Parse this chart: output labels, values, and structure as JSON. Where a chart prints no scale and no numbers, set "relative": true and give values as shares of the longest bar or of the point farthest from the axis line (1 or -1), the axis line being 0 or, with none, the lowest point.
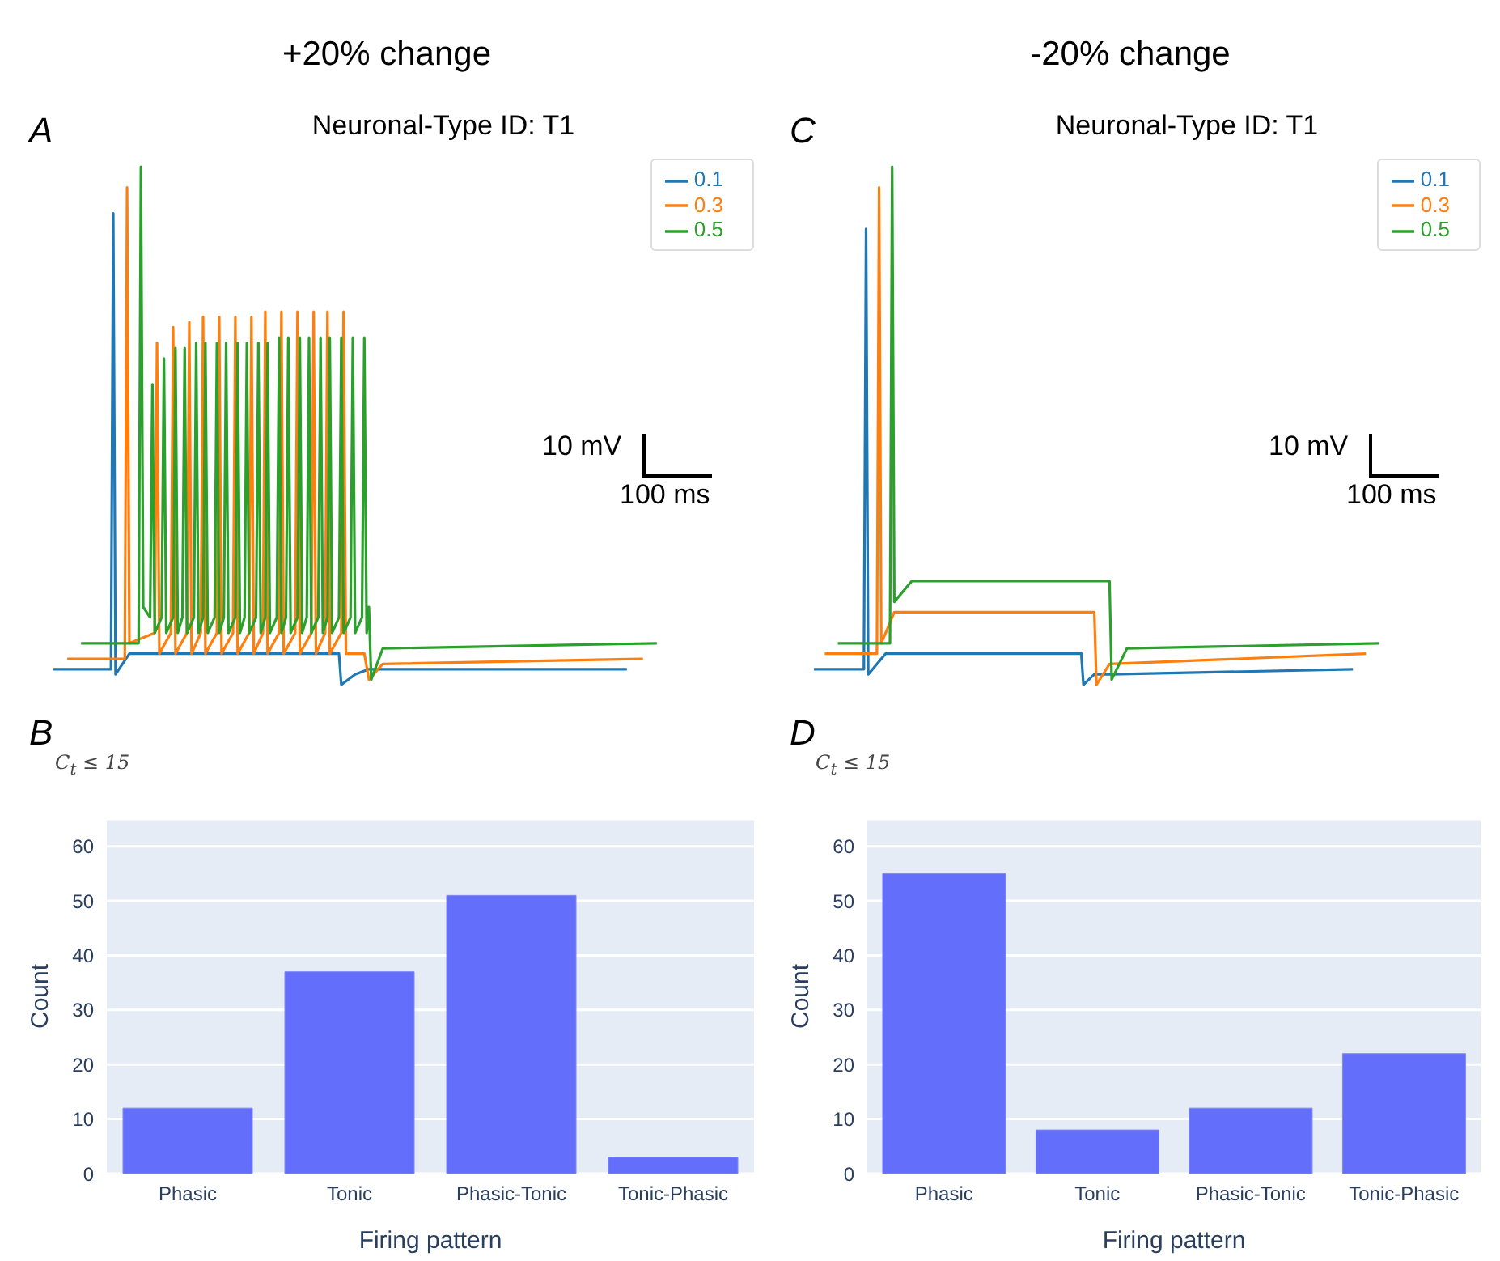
{
  "chart_data": [
    {
      "type": "line",
      "relative": true,
      "title": "+20% change",
      "subtitle": "Neuronal-Type ID: T1",
      "annotations": [
        "A",
        "10 mV",
        "100 ms"
      ],
      "tick_labels": false,
      "legend": "top right",
      "line_style": "solid",
      "categories": [
        null,
        null,
        null,
        null,
        null,
        null,
        null,
        null,
        null,
        null,
        null,
        null,
        null,
        null,
        null,
        null,
        null,
        null,
        null,
        null,
        null,
        null,
        null,
        null,
        null,
        null,
        null,
        null,
        null,
        null,
        null,
        null,
        null,
        null,
        null,
        null,
        null,
        null,
        null,
        null,
        null,
        null,
        null,
        null,
        null,
        null,
        null,
        null,
        null,
        null,
        null,
        null,
        null,
        null,
        null,
        null,
        null,
        null,
        null,
        null,
        null,
        null,
        null,
        null,
        null,
        null,
        null,
        null,
        null,
        null,
        null,
        null,
        null,
        null,
        null,
        null,
        null,
        null,
        null,
        null,
        null,
        null,
        null,
        null,
        null,
        null,
        null,
        null,
        null,
        null,
        null,
        null,
        null,
        null,
        null,
        null,
        null,
        null,
        null,
        null,
        null,
        null,
        null,
        null,
        null,
        null,
        null,
        null,
        null,
        null,
        null,
        null,
        null,
        null,
        null,
        null,
        null,
        null,
        null,
        null,
        null,
        null,
        null,
        null,
        null,
        null,
        null,
        null,
        null,
        null,
        null,
        null,
        null,
        null,
        null,
        null,
        null,
        null,
        null,
        null,
        null,
        null,
        null,
        null,
        null,
        null,
        null,
        null,
        null,
        null,
        null,
        null,
        null,
        null,
        null,
        null,
        null,
        null,
        null,
        null,
        null,
        null,
        null,
        null,
        null,
        null,
        null,
        null,
        null,
        null,
        null,
        null,
        null,
        null,
        null,
        null,
        null,
        null,
        null,
        null,
        null,
        null,
        null,
        null,
        null,
        null,
        null,
        null,
        null,
        null,
        null,
        null,
        null,
        null,
        null,
        null,
        null,
        null,
        null,
        null,
        null,
        null,
        null,
        null,
        null,
        null,
        null,
        null,
        null,
        null,
        null,
        null,
        null,
        null,
        null,
        null,
        null,
        null,
        null,
        null,
        null,
        null,
        null,
        null,
        null,
        null,
        null,
        null,
        null,
        null,
        null,
        null,
        null,
        null,
        null,
        null,
        null,
        null,
        null,
        null,
        null,
        null,
        null,
        null,
        null,
        null,
        null,
        null,
        null,
        null,
        null,
        null,
        null,
        null,
        null,
        null,
        null,
        null,
        null,
        null,
        null,
        null,
        null
      ],
      "series": [
        {
          "name": "0.1",
          "color": "#1f77b4",
          "values": [
            0.03,
            null,
            null,
            null,
            null,
            null,
            null,
            null,
            null,
            null,
            null,
            null,
            null,
            null,
            null,
            null,
            null,
            null,
            null,
            null,
            null,
            null,
            null,
            null,
            null,
            0.03,
            0.91,
            0.02,
            null,
            null,
            null,
            null,
            null,
            0.06,
            null,
            null,
            null,
            null,
            null,
            null,
            0.06,
            null,
            null,
            null,
            null,
            null,
            null,
            null,
            null,
            null,
            null,
            null,
            null,
            null,
            null,
            null,
            null,
            null,
            null,
            null,
            null,
            null,
            null,
            null,
            null,
            null,
            null,
            null,
            null,
            null,
            null,
            null,
            null,
            null,
            null,
            null,
            null,
            null,
            null,
            null,
            null,
            null,
            null,
            null,
            null,
            null,
            null,
            null,
            null,
            null,
            null,
            null,
            null,
            null,
            null,
            null,
            null,
            null,
            null,
            null,
            null,
            null,
            null,
            null,
            null,
            null,
            null,
            null,
            null,
            null,
            null,
            null,
            null,
            null,
            null,
            null,
            null,
            null,
            null,
            null,
            null,
            null,
            null,
            null,
            0.06,
            0.0,
            null,
            null,
            null,
            null,
            null,
            0.02,
            null,
            null,
            null,
            null,
            null,
            0.03,
            null,
            null,
            null,
            null,
            null,
            null,
            null,
            null,
            null,
            null,
            null,
            null,
            null,
            null,
            null,
            null,
            null,
            null,
            null,
            null,
            null,
            null,
            null,
            null,
            null,
            null,
            null,
            null,
            null,
            null,
            null,
            null,
            null,
            null,
            null,
            null,
            null,
            null,
            null,
            null,
            null,
            null,
            null,
            null,
            null,
            null,
            null,
            null,
            null,
            null,
            null,
            null,
            null,
            null,
            null,
            null,
            null,
            null,
            null,
            null,
            null,
            null,
            null,
            null,
            null,
            null,
            null,
            null,
            null,
            null,
            null,
            null,
            null,
            null,
            null,
            null,
            null,
            null,
            null,
            null,
            null,
            null,
            null,
            null,
            null,
            null,
            null,
            null,
            null,
            null,
            null,
            null,
            null,
            null,
            null,
            null,
            null,
            null,
            null,
            null,
            null,
            null,
            null,
            null,
            null,
            null,
            null,
            null,
            null,
            null,
            null,
            0.03,
            null,
            null,
            null,
            null,
            null,
            null,
            null,
            null,
            null,
            null,
            null,
            null,
            null
          ]
        },
        {
          "name": "0.3",
          "color": "#ff7f0e",
          "values": [
            null,
            null,
            null,
            null,
            null,
            null,
            0.05,
            null,
            null,
            null,
            null,
            null,
            null,
            null,
            null,
            null,
            null,
            null,
            null,
            null,
            null,
            null,
            null,
            null,
            null,
            null,
            null,
            null,
            null,
            null,
            null,
            0.05,
            0.96,
            0.08,
            null,
            null,
            null,
            null,
            null,
            null,
            null,
            null,
            null,
            null,
            0.1,
            0.66,
            0.06,
            null,
            null,
            null,
            null,
            0.1,
            0.69,
            0.06,
            null,
            null,
            null,
            null,
            0.1,
            0.7,
            0.06,
            null,
            null,
            null,
            0.1,
            0.71,
            0.06,
            null,
            null,
            null,
            null,
            0.1,
            0.71,
            0.06,
            null,
            null,
            null,
            null,
            0.1,
            0.71,
            0.06,
            null,
            null,
            null,
            null,
            0.1,
            0.71,
            0.06,
            null,
            null,
            null,
            0.1,
            0.72,
            0.06,
            null,
            null,
            null,
            null,
            0.1,
            0.72,
            0.06,
            null,
            null,
            null,
            null,
            0.1,
            0.72,
            0.06,
            null,
            null,
            null,
            null,
            0.1,
            0.72,
            0.06,
            null,
            null,
            null,
            0.1,
            0.72,
            0.06,
            null,
            null,
            null,
            null,
            0.1,
            0.72,
            0.06,
            null,
            null,
            null,
            null,
            null,
            null,
            null,
            0.06,
            null,
            0.01,
            null,
            null,
            null,
            null,
            null,
            0.04,
            null,
            null,
            null,
            null,
            null,
            null,
            null,
            null,
            null,
            null,
            null,
            null,
            null,
            null,
            null,
            null,
            null,
            null,
            null,
            null,
            null,
            null,
            null,
            null,
            null,
            null,
            null,
            null,
            null,
            null,
            null,
            null,
            null,
            null,
            null,
            null,
            null,
            null,
            null,
            null,
            null,
            null,
            null,
            null,
            null,
            null,
            null,
            null,
            null,
            null,
            null,
            null,
            null,
            null,
            null,
            null,
            null,
            null,
            null,
            null,
            null,
            null,
            null,
            null,
            null,
            null,
            null,
            null,
            null,
            null,
            null,
            null,
            null,
            null,
            null,
            null,
            null,
            null,
            null,
            null,
            null,
            null,
            null,
            null,
            null,
            null,
            null,
            null,
            null,
            null,
            null,
            null,
            null,
            null,
            null,
            null,
            null,
            null,
            null,
            null,
            null,
            null,
            null,
            null,
            null,
            null,
            null,
            null,
            null,
            null,
            null,
            null,
            0.05,
            null,
            null,
            null,
            null,
            null,
            null
          ]
        },
        {
          "name": "0.5",
          "color": "#2ca02c",
          "values": [
            null,
            null,
            null,
            null,
            null,
            null,
            null,
            null,
            null,
            null,
            null,
            null,
            0.08,
            null,
            null,
            null,
            null,
            null,
            null,
            null,
            null,
            null,
            null,
            null,
            null,
            null,
            null,
            null,
            null,
            null,
            null,
            null,
            null,
            null,
            null,
            null,
            null,
            0.08,
            1.0,
            0.15,
            null,
            null,
            0.13,
            0.58,
            0.1,
            null,
            null,
            0.13,
            0.63,
            0.1,
            null,
            null,
            0.13,
            0.65,
            0.1,
            null,
            0.13,
            0.65,
            0.1,
            null,
            null,
            0.13,
            0.66,
            0.1,
            null,
            0.13,
            0.66,
            0.1,
            null,
            null,
            0.13,
            0.66,
            0.1,
            null,
            0.13,
            0.66,
            0.1,
            null,
            null,
            0.13,
            0.66,
            0.1,
            null,
            0.13,
            0.66,
            0.1,
            null,
            null,
            0.13,
            0.66,
            0.1,
            null,
            0.13,
            0.66,
            0.1,
            null,
            null,
            0.13,
            0.67,
            0.1,
            null,
            0.13,
            0.67,
            0.1,
            null,
            null,
            0.13,
            0.67,
            0.1,
            null,
            0.13,
            0.67,
            0.1,
            null,
            null,
            0.13,
            0.67,
            0.1,
            null,
            0.13,
            0.67,
            0.1,
            null,
            null,
            0.13,
            0.67,
            0.1,
            null,
            null,
            0.13,
            0.67,
            0.1,
            null,
            null,
            0.13,
            0.67,
            0.1,
            0.15,
            0.01,
            null,
            null,
            null,
            null,
            0.07,
            null,
            null,
            null,
            null,
            null,
            null,
            null,
            null,
            null,
            null,
            null,
            null,
            null,
            null,
            null,
            null,
            null,
            null,
            null,
            null,
            null,
            null,
            null,
            null,
            null,
            null,
            null,
            null,
            null,
            null,
            null,
            null,
            null,
            null,
            null,
            null,
            null,
            null,
            null,
            null,
            null,
            null,
            null,
            null,
            null,
            null,
            null,
            null,
            null,
            null,
            null,
            null,
            null,
            null,
            null,
            null,
            null,
            null,
            null,
            null,
            null,
            null,
            null,
            null,
            null,
            null,
            null,
            null,
            null,
            null,
            null,
            null,
            null,
            null,
            null,
            null,
            null,
            null,
            null,
            null,
            null,
            null,
            null,
            null,
            null,
            null,
            null,
            null,
            null,
            null,
            null,
            null,
            null,
            null,
            null,
            null,
            null,
            null,
            null,
            null,
            null,
            null,
            null,
            null,
            null,
            null,
            null,
            null,
            null,
            null,
            null,
            null,
            null,
            null,
            null,
            null,
            null,
            null,
            0.08
          ]
        }
      ]
    },
    {
      "type": "bar",
      "annotations": [
        "B",
        "C$_{t}$ ≤ 15"
      ],
      "xlabel": "Firing pattern",
      "ylabel": "Count",
      "categories": [
        "Phasic",
        "Tonic",
        "Phasic-Tonic",
        "Tonic-Phasic"
      ],
      "values": [
        12,
        37,
        51,
        3
      ],
      "color": "#636efa",
      "ylim": [
        0,
        65
      ],
      "yticks": [
        0,
        10,
        20,
        30,
        40,
        50,
        60
      ],
      "grid": "y"
    },
    {
      "type": "line",
      "relative": true,
      "title": "-20% change",
      "subtitle": "Neuronal-Type ID: T1",
      "annotations": [
        "C",
        "10 mV",
        "100 ms"
      ],
      "tick_labels": false,
      "legend": "top right",
      "line_style": "solid",
      "categories": [
        null,
        null,
        null,
        null,
        null,
        null,
        null,
        null,
        null,
        null,
        null,
        null,
        null,
        null,
        null,
        null,
        null,
        null,
        null,
        null,
        null,
        null,
        null,
        null,
        null,
        null,
        null,
        null,
        null,
        null,
        null,
        null,
        null,
        null,
        null,
        null,
        null,
        null,
        null,
        null,
        null,
        null,
        null,
        null,
        null,
        null,
        null,
        null,
        null,
        null,
        null,
        null,
        null,
        null,
        null,
        null,
        null,
        null,
        null,
        null,
        null,
        null,
        null,
        null,
        null,
        null,
        null,
        null,
        null,
        null,
        null,
        null,
        null,
        null,
        null,
        null,
        null,
        null,
        null,
        null,
        null,
        null,
        null,
        null,
        null,
        null,
        null,
        null,
        null,
        null,
        null,
        null,
        null,
        null,
        null,
        null,
        null,
        null,
        null,
        null,
        null,
        null,
        null,
        null,
        null,
        null,
        null,
        null,
        null,
        null,
        null,
        null,
        null,
        null,
        null,
        null,
        null,
        null,
        null,
        null,
        null,
        null,
        null,
        null,
        null,
        null,
        null,
        null,
        null,
        null,
        null,
        null,
        null,
        null,
        null,
        null,
        null,
        null,
        null,
        null,
        null,
        null,
        null,
        null,
        null,
        null,
        null,
        null,
        null,
        null,
        null,
        null,
        null,
        null,
        null,
        null,
        null,
        null,
        null,
        null,
        null,
        null,
        null,
        null,
        null,
        null,
        null,
        null,
        null,
        null,
        null,
        null,
        null,
        null,
        null,
        null,
        null,
        null,
        null,
        null,
        null,
        null,
        null,
        null,
        null,
        null,
        null,
        null,
        null,
        null,
        null,
        null,
        null,
        null,
        null,
        null,
        null,
        null,
        null,
        null,
        null,
        null,
        null,
        null,
        null,
        null,
        null,
        null,
        null,
        null,
        null,
        null,
        null,
        null,
        null,
        null,
        null,
        null,
        null,
        null,
        null,
        null,
        null,
        null,
        null,
        null,
        null,
        null,
        null,
        null,
        null,
        null,
        null,
        null,
        null,
        null,
        null,
        null,
        null,
        null,
        null,
        null,
        null,
        null,
        null,
        null,
        null,
        null,
        null,
        null,
        null,
        null,
        null,
        null,
        null,
        null,
        null,
        null,
        null,
        null,
        null,
        null,
        null
      ],
      "series": [
        {
          "name": "0.1",
          "color": "#1f77b4",
          "values": [
            0.03,
            null,
            null,
            null,
            null,
            null,
            null,
            null,
            null,
            null,
            null,
            null,
            null,
            null,
            null,
            null,
            null,
            null,
            null,
            null,
            null,
            null,
            null,
            0.03,
            0.88,
            0.02,
            null,
            null,
            null,
            null,
            null,
            null,
            null,
            0.06,
            null,
            null,
            null,
            null,
            null,
            null,
            null,
            null,
            null,
            null,
            null,
            null,
            null,
            null,
            null,
            null,
            null,
            null,
            null,
            null,
            null,
            null,
            null,
            null,
            null,
            null,
            null,
            null,
            null,
            null,
            null,
            null,
            null,
            null,
            null,
            null,
            null,
            null,
            null,
            null,
            null,
            null,
            null,
            null,
            null,
            null,
            null,
            null,
            null,
            null,
            null,
            null,
            null,
            null,
            null,
            null,
            null,
            null,
            null,
            null,
            null,
            null,
            null,
            null,
            null,
            null,
            null,
            null,
            null,
            null,
            null,
            null,
            null,
            null,
            null,
            null,
            null,
            null,
            null,
            null,
            null,
            null,
            null,
            null,
            null,
            null,
            null,
            null,
            null,
            0.06,
            0.0,
            null,
            null,
            null,
            null,
            0.02,
            null,
            null,
            null,
            null,
            null,
            null,
            null,
            0.02,
            null,
            null,
            null,
            null,
            null,
            null,
            null,
            null,
            null,
            null,
            null,
            null,
            null,
            null,
            null,
            null,
            null,
            null,
            null,
            null,
            null,
            null,
            null,
            null,
            null,
            null,
            null,
            null,
            null,
            null,
            null,
            null,
            null,
            null,
            null,
            null,
            null,
            null,
            null,
            null,
            null,
            null,
            null,
            null,
            null,
            null,
            null,
            null,
            null,
            null,
            null,
            null,
            null,
            null,
            null,
            null,
            null,
            null,
            null,
            null,
            null,
            null,
            null,
            null,
            null,
            null,
            null,
            null,
            null,
            null,
            null,
            null,
            null,
            null,
            null,
            null,
            null,
            null,
            null,
            null,
            null,
            null,
            null,
            null,
            null,
            null,
            null,
            null,
            null,
            null,
            null,
            null,
            null,
            null,
            null,
            null,
            null,
            null,
            null,
            null,
            null,
            null,
            null,
            null,
            null,
            null,
            null,
            null,
            null,
            null,
            0.03,
            null,
            null,
            null,
            null,
            null,
            null,
            null,
            null,
            null,
            null,
            null,
            null,
            null,
            null
          ]
        },
        {
          "name": "0.3",
          "color": "#ff7f0e",
          "values": [
            null,
            null,
            null,
            null,
            null,
            0.06,
            null,
            null,
            null,
            null,
            null,
            null,
            null,
            null,
            null,
            null,
            null,
            null,
            null,
            null,
            null,
            null,
            null,
            null,
            null,
            null,
            null,
            null,
            null,
            0.06,
            0.96,
            0.08,
            null,
            null,
            null,
            null,
            null,
            0.14,
            null,
            null,
            null,
            null,
            null,
            null,
            null,
            null,
            null,
            null,
            null,
            null,
            null,
            null,
            null,
            null,
            null,
            null,
            null,
            null,
            null,
            null,
            null,
            null,
            null,
            null,
            null,
            null,
            null,
            null,
            null,
            null,
            null,
            null,
            null,
            null,
            null,
            null,
            null,
            null,
            null,
            null,
            null,
            null,
            null,
            null,
            null,
            null,
            null,
            null,
            null,
            null,
            null,
            null,
            null,
            null,
            null,
            null,
            null,
            null,
            null,
            null,
            null,
            null,
            null,
            null,
            null,
            null,
            null,
            null,
            null,
            null,
            null,
            null,
            null,
            null,
            null,
            null,
            null,
            null,
            null,
            null,
            null,
            null,
            null,
            null,
            null,
            null,
            null,
            null,
            null,
            0.14,
            0.0,
            null,
            null,
            null,
            null,
            null,
            0.04,
            null,
            null,
            null,
            null,
            null,
            null,
            null,
            null,
            null,
            null,
            null,
            null,
            null,
            null,
            null,
            null,
            null,
            null,
            null,
            null,
            null,
            null,
            null,
            null,
            null,
            null,
            null,
            null,
            null,
            null,
            null,
            null,
            null,
            null,
            null,
            null,
            null,
            null,
            null,
            null,
            null,
            null,
            null,
            null,
            null,
            null,
            null,
            null,
            null,
            null,
            null,
            null,
            null,
            null,
            null,
            null,
            null,
            null,
            null,
            null,
            null,
            null,
            null,
            null,
            null,
            null,
            null,
            null,
            null,
            null,
            null,
            null,
            null,
            null,
            null,
            null,
            null,
            null,
            null,
            null,
            null,
            null,
            null,
            null,
            null,
            null,
            null,
            null,
            null,
            null,
            null,
            null,
            null,
            null,
            null,
            null,
            null,
            null,
            null,
            null,
            null,
            null,
            null,
            null,
            null,
            null,
            null,
            null,
            null,
            null,
            null,
            null,
            null,
            null,
            null,
            null,
            null,
            0.06,
            null,
            null,
            null,
            null,
            null,
            null,
            null,
            null
          ]
        },
        {
          "name": "0.5",
          "color": "#2ca02c",
          "values": [
            null,
            null,
            null,
            null,
            null,
            null,
            null,
            null,
            null,
            null,
            null,
            0.08,
            null,
            null,
            null,
            null,
            null,
            null,
            null,
            null,
            null,
            null,
            null,
            null,
            null,
            null,
            null,
            null,
            null,
            null,
            null,
            null,
            null,
            null,
            null,
            0.08,
            1.0,
            0.16,
            null,
            null,
            null,
            null,
            null,
            null,
            null,
            0.2,
            null,
            null,
            null,
            null,
            null,
            null,
            null,
            null,
            null,
            null,
            null,
            null,
            null,
            null,
            null,
            null,
            null,
            null,
            null,
            null,
            null,
            null,
            null,
            null,
            null,
            null,
            null,
            null,
            null,
            null,
            null,
            null,
            null,
            null,
            null,
            null,
            null,
            null,
            null,
            null,
            null,
            null,
            null,
            null,
            null,
            null,
            null,
            null,
            null,
            null,
            null,
            null,
            null,
            null,
            null,
            null,
            null,
            null,
            null,
            null,
            null,
            null,
            null,
            null,
            null,
            null,
            null,
            null,
            null,
            null,
            null,
            null,
            null,
            null,
            null,
            null,
            null,
            null,
            null,
            null,
            null,
            null,
            null,
            null,
            null,
            null,
            null,
            null,
            null,
            null,
            0.2,
            0.01,
            null,
            null,
            null,
            null,
            null,
            null,
            0.07,
            null,
            null,
            null,
            null,
            null,
            null,
            null,
            null,
            null,
            null,
            null,
            null,
            null,
            null,
            null,
            null,
            null,
            null,
            null,
            null,
            null,
            null,
            null,
            null,
            null,
            null,
            null,
            null,
            null,
            null,
            null,
            null,
            null,
            null,
            null,
            null,
            null,
            null,
            null,
            null,
            null,
            null,
            null,
            null,
            null,
            null,
            null,
            null,
            null,
            null,
            null,
            null,
            null,
            null,
            null,
            null,
            null,
            null,
            null,
            null,
            null,
            null,
            null,
            null,
            null,
            null,
            null,
            null,
            null,
            null,
            null,
            null,
            null,
            null,
            null,
            null,
            null,
            null,
            null,
            null,
            null,
            null,
            null,
            null,
            null,
            null,
            null,
            null,
            null,
            null,
            null,
            null,
            null,
            null,
            null,
            null,
            null,
            null,
            null,
            null,
            null,
            null,
            null,
            null,
            null,
            null,
            null,
            null,
            null,
            null,
            null,
            null,
            null,
            null,
            null,
            0.08,
            null,
            null
          ]
        }
      ]
    },
    {
      "type": "bar",
      "annotations": [
        "D",
        "C$_{t}$ ≤ 15"
      ],
      "xlabel": "Firing pattern",
      "ylabel": "Count",
      "categories": [
        "Phasic",
        "Tonic",
        "Phasic-Tonic",
        "Tonic-Phasic"
      ],
      "values": [
        55,
        8,
        12,
        22
      ],
      "color": "#636efa",
      "ylim": [
        0,
        65
      ],
      "yticks": [
        0,
        10,
        20,
        30,
        40,
        50,
        60
      ],
      "grid": "y"
    }
  ]
}
